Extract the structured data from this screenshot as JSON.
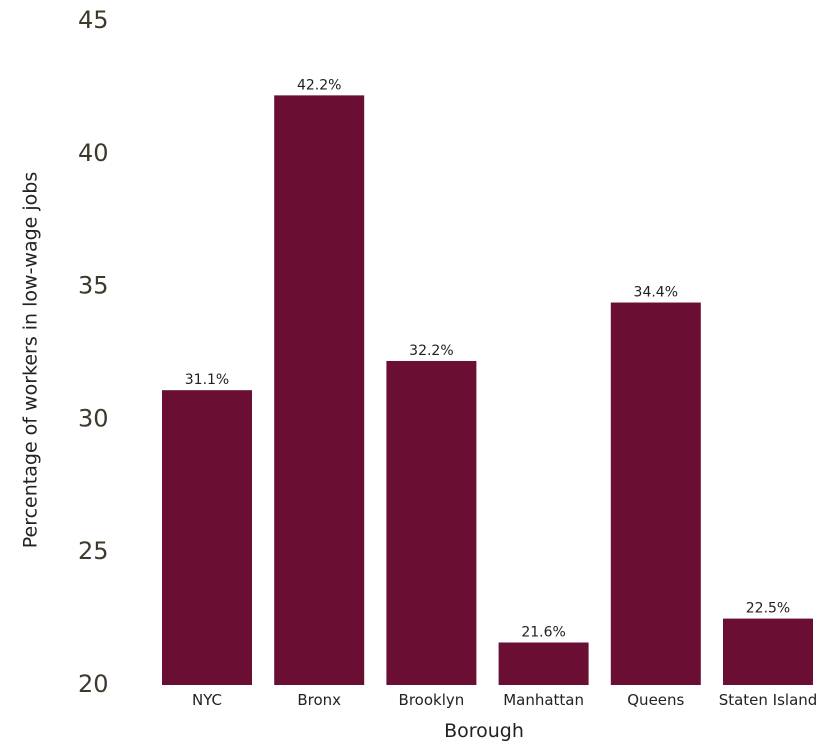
{
  "chart_data": {
    "type": "bar",
    "title": "",
    "xlabel": "Borough",
    "ylabel": "Percentage of workers in low-wage jobs",
    "categories": [
      "NYC",
      "Bronx",
      "Brooklyn",
      "Manhattan",
      "Queens",
      "Staten Island"
    ],
    "values": [
      31.1,
      42.2,
      32.2,
      21.6,
      34.4,
      22.5
    ],
    "data_labels": [
      "31.1%",
      "42.2%",
      "32.2%",
      "21.6%",
      "34.4%",
      "22.5%"
    ],
    "ylim": [
      20,
      45
    ],
    "yticks": [
      "20",
      "25",
      "30",
      "35",
      "40",
      "45"
    ],
    "grid": false,
    "legend": "none",
    "bar_color": "#6a0f33"
  }
}
